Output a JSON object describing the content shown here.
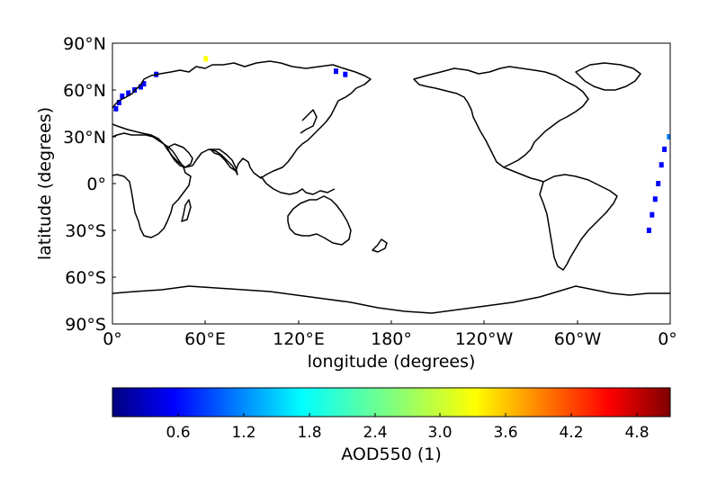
{
  "map": {
    "x_label": "longitude (degrees)",
    "y_label": "latitude (degrees)",
    "x_ticks": [
      "0°",
      "60°E",
      "120°E",
      "180°",
      "120°W",
      "60°W",
      "0°"
    ],
    "y_ticks": [
      "90°N",
      "60°N",
      "30°N",
      "0°",
      "30°S",
      "60°S",
      "90°S"
    ],
    "projection": "plate carrée, 0° to 360° longitude",
    "coastline_color": "#000000"
  },
  "colorbar": {
    "label": "AOD550 (1)",
    "ticks": [
      "0.6",
      "1.2",
      "1.8",
      "2.4",
      "3.0",
      "3.6",
      "4.2",
      "4.8"
    ],
    "range": [
      0.0,
      5.1
    ],
    "colormap": "jet",
    "colors": [
      "#00007f",
      "#0000ff",
      "#007fff",
      "#00ffff",
      "#7fff7f",
      "#ffff00",
      "#ff7f00",
      "#ff0000",
      "#7f0000"
    ]
  },
  "chart_data": {
    "type": "heatmap",
    "variable": "AOD550 (1)",
    "x_range_deg": [
      0,
      360
    ],
    "y_range_deg": [
      -90,
      90
    ],
    "value_range": [
      0.0,
      5.1
    ],
    "cells": [
      {
        "lon": 2,
        "lat": 48,
        "aod": 0.6
      },
      {
        "lon": 4,
        "lat": 52,
        "aod": 0.5
      },
      {
        "lon": 6,
        "lat": 56,
        "aod": 0.7
      },
      {
        "lon": 10,
        "lat": 58,
        "aod": 0.8
      },
      {
        "lon": 14,
        "lat": 60,
        "aod": 0.4
      },
      {
        "lon": 18,
        "lat": 62,
        "aod": 0.6
      },
      {
        "lon": 20,
        "lat": 64,
        "aod": 0.5
      },
      {
        "lon": 28,
        "lat": 70,
        "aod": 0.4
      },
      {
        "lon": 60,
        "lat": 80,
        "aod": 3.2
      },
      {
        "lon": 144,
        "lat": 72,
        "aod": 0.5
      },
      {
        "lon": 150,
        "lat": 70,
        "aod": 0.4
      },
      {
        "lon": 359,
        "lat": 30,
        "aod": 1.1
      },
      {
        "lon": 356,
        "lat": 22,
        "aod": 0.9
      },
      {
        "lon": 354,
        "lat": 12,
        "aod": 0.6
      },
      {
        "lon": 352,
        "lat": 0,
        "aod": 0.5
      },
      {
        "lon": 350,
        "lat": -10,
        "aod": 0.6
      },
      {
        "lon": 348,
        "lat": -20,
        "aod": 0.5
      },
      {
        "lon": 346,
        "lat": -30,
        "aod": 0.4
      }
    ]
  }
}
